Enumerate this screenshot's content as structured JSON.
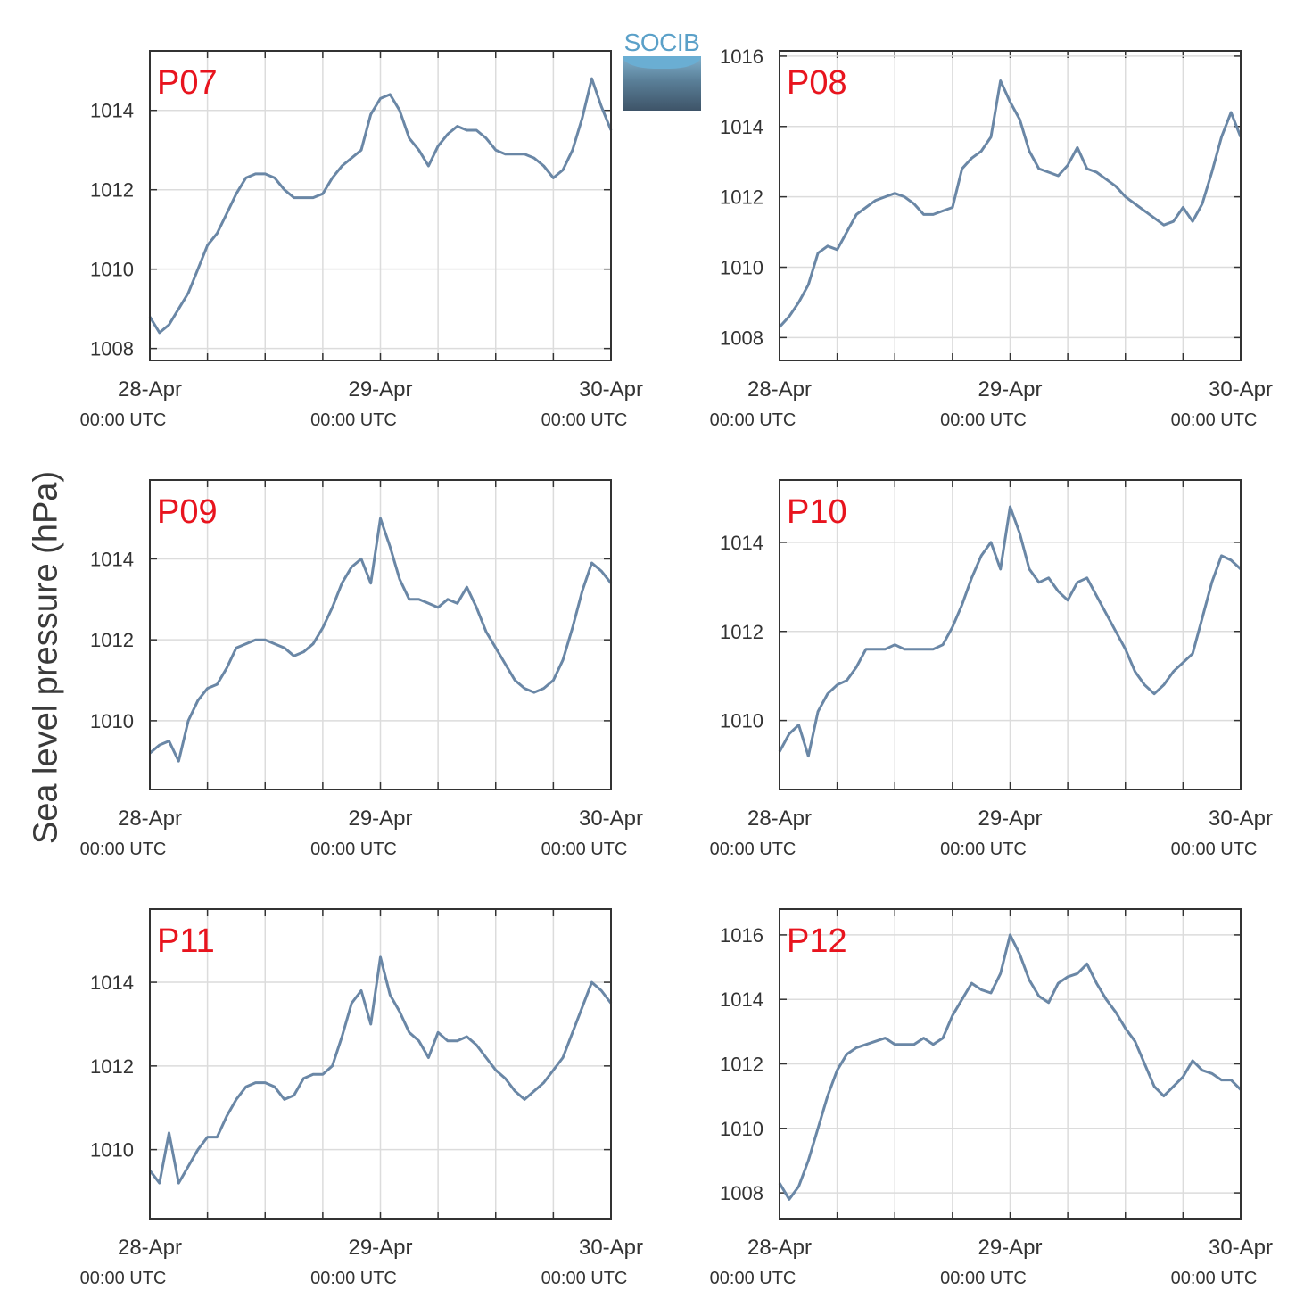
{
  "figure": {
    "ylabel": "Sea level pressure (hPa)",
    "logo_text": "SOCIB",
    "line_color": "#6a87a6",
    "panel_label_color": "#e8141e"
  },
  "chart_data": [
    {
      "type": "line",
      "panel": "P07",
      "x_unit": "hours since 28-Apr 00:00 UTC",
      "xlim": [
        0,
        48
      ],
      "ylim": [
        1007.7,
        1015.5
      ],
      "yticks": [
        1008,
        1010,
        1012,
        1014
      ],
      "xticks_major": [
        {
          "x": 0,
          "label": "28-Apr",
          "sublabel": "00:00 UTC"
        },
        {
          "x": 24,
          "label": "29-Apr",
          "sublabel": "00:00 UTC"
        },
        {
          "x": 48,
          "label": "30-Apr",
          "sublabel": "00:00 UTC"
        }
      ],
      "x": [
        0,
        1,
        2,
        3,
        4,
        5,
        6,
        7,
        8,
        9,
        10,
        11,
        12,
        13,
        14,
        15,
        16,
        17,
        18,
        19,
        20,
        21,
        22,
        23,
        24,
        25,
        26,
        27,
        28,
        29,
        30,
        31,
        32,
        33,
        34,
        35,
        36,
        37,
        38,
        39,
        40,
        41,
        42,
        43,
        44,
        45,
        46,
        47,
        48
      ],
      "y": [
        1008.8,
        1008.4,
        1008.6,
        1009.0,
        1009.4,
        1010.0,
        1010.6,
        1010.9,
        1011.4,
        1011.9,
        1012.3,
        1012.4,
        1012.4,
        1012.3,
        1012.0,
        1011.8,
        1011.8,
        1011.8,
        1011.9,
        1012.3,
        1012.6,
        1012.8,
        1013.0,
        1013.9,
        1014.3,
        1014.4,
        1014.0,
        1013.3,
        1013.0,
        1012.6,
        1013.1,
        1013.4,
        1013.6,
        1013.5,
        1013.5,
        1013.3,
        1013.0,
        1012.9,
        1012.9,
        1012.9,
        1012.8,
        1012.6,
        1012.3,
        1012.5,
        1013.0,
        1013.8,
        1014.8,
        1014.1,
        1013.5
      ]
    },
    {
      "type": "line",
      "panel": "P08",
      "x_unit": "hours since 28-Apr 00:00 UTC",
      "xlim": [
        0,
        48
      ],
      "ylim": [
        1007.35,
        1016.15
      ],
      "yticks": [
        1008,
        1010,
        1012,
        1014,
        1016
      ],
      "xticks_major": [
        {
          "x": 0,
          "label": "28-Apr",
          "sublabel": "00:00 UTC"
        },
        {
          "x": 24,
          "label": "29-Apr",
          "sublabel": "00:00 UTC"
        },
        {
          "x": 48,
          "label": "30-Apr",
          "sublabel": "00:00 UTC"
        }
      ],
      "x": [
        0,
        1,
        2,
        3,
        4,
        5,
        6,
        7,
        8,
        9,
        10,
        11,
        12,
        13,
        14,
        15,
        16,
        17,
        18,
        19,
        20,
        21,
        22,
        23,
        24,
        25,
        26,
        27,
        28,
        29,
        30,
        31,
        32,
        33,
        34,
        35,
        36,
        37,
        38,
        39,
        40,
        41,
        42,
        43,
        44,
        45,
        46,
        47,
        48
      ],
      "y": [
        1008.3,
        1008.6,
        1009.0,
        1009.5,
        1010.4,
        1010.6,
        1010.5,
        1011.0,
        1011.5,
        1011.7,
        1011.9,
        1012.0,
        1012.1,
        1012.0,
        1011.8,
        1011.5,
        1011.5,
        1011.6,
        1011.7,
        1012.8,
        1013.1,
        1013.3,
        1013.7,
        1015.3,
        1014.7,
        1014.2,
        1013.3,
        1012.8,
        1012.7,
        1012.6,
        1012.9,
        1013.4,
        1012.8,
        1012.7,
        1012.5,
        1012.3,
        1012.0,
        1011.8,
        1011.6,
        1011.4,
        1011.2,
        1011.3,
        1011.7,
        1011.3,
        1011.8,
        1012.7,
        1013.7,
        1014.4,
        1013.7
      ]
    },
    {
      "type": "line",
      "panel": "P09",
      "x_unit": "hours since 28-Apr 00:00 UTC",
      "xlim": [
        0,
        48
      ],
      "ylim": [
        1008.3,
        1015.95
      ],
      "yticks": [
        1010,
        1012,
        1014
      ],
      "xticks_major": [
        {
          "x": 0,
          "label": "28-Apr",
          "sublabel": "00:00 UTC"
        },
        {
          "x": 24,
          "label": "29-Apr",
          "sublabel": "00:00 UTC"
        },
        {
          "x": 48,
          "label": "30-Apr",
          "sublabel": "00:00 UTC"
        }
      ],
      "x": [
        0,
        1,
        2,
        3,
        4,
        5,
        6,
        7,
        8,
        9,
        10,
        11,
        12,
        13,
        14,
        15,
        16,
        17,
        18,
        19,
        20,
        21,
        22,
        23,
        24,
        25,
        26,
        27,
        28,
        29,
        30,
        31,
        32,
        33,
        34,
        35,
        36,
        37,
        38,
        39,
        40,
        41,
        42,
        43,
        44,
        45,
        46,
        47,
        48
      ],
      "y": [
        1009.2,
        1009.4,
        1009.5,
        1009.0,
        1010.0,
        1010.5,
        1010.8,
        1010.9,
        1011.3,
        1011.8,
        1011.9,
        1012.0,
        1012.0,
        1011.9,
        1011.8,
        1011.6,
        1011.7,
        1011.9,
        1012.3,
        1012.8,
        1013.4,
        1013.8,
        1014.0,
        1013.4,
        1015.0,
        1014.3,
        1013.5,
        1013.0,
        1013.0,
        1012.9,
        1012.8,
        1013.0,
        1012.9,
        1013.3,
        1012.8,
        1012.2,
        1011.8,
        1011.4,
        1011.0,
        1010.8,
        1010.7,
        1010.8,
        1011.0,
        1011.5,
        1012.3,
        1013.2,
        1013.9,
        1013.7,
        1013.4
      ]
    },
    {
      "type": "line",
      "panel": "P10",
      "x_unit": "hours since 28-Apr 00:00 UTC",
      "xlim": [
        0,
        48
      ],
      "ylim": [
        1008.45,
        1015.4
      ],
      "yticks": [
        1010,
        1012,
        1014
      ],
      "xticks_major": [
        {
          "x": 0,
          "label": "28-Apr",
          "sublabel": "00:00 UTC"
        },
        {
          "x": 24,
          "label": "29-Apr",
          "sublabel": "00:00 UTC"
        },
        {
          "x": 48,
          "label": "30-Apr",
          "sublabel": "00:00 UTC"
        }
      ],
      "x": [
        0,
        1,
        2,
        3,
        4,
        5,
        6,
        7,
        8,
        9,
        10,
        11,
        12,
        13,
        14,
        15,
        16,
        17,
        18,
        19,
        20,
        21,
        22,
        23,
        24,
        25,
        26,
        27,
        28,
        29,
        30,
        31,
        32,
        33,
        34,
        35,
        36,
        37,
        38,
        39,
        40,
        41,
        42,
        43,
        44,
        45,
        46,
        47,
        48
      ],
      "y": [
        1009.3,
        1009.7,
        1009.9,
        1009.2,
        1010.2,
        1010.6,
        1010.8,
        1010.9,
        1011.2,
        1011.6,
        1011.6,
        1011.6,
        1011.7,
        1011.6,
        1011.6,
        1011.6,
        1011.6,
        1011.7,
        1012.1,
        1012.6,
        1013.2,
        1013.7,
        1014.0,
        1013.4,
        1014.8,
        1014.2,
        1013.4,
        1013.1,
        1013.2,
        1012.9,
        1012.7,
        1013.1,
        1013.2,
        1012.8,
        1012.4,
        1012.0,
        1011.6,
        1011.1,
        1010.8,
        1010.6,
        1010.8,
        1011.1,
        1011.3,
        1011.5,
        1012.3,
        1013.1,
        1013.7,
        1013.6,
        1013.4
      ]
    },
    {
      "type": "line",
      "panel": "P11",
      "x_unit": "hours since 28-Apr 00:00 UTC",
      "xlim": [
        0,
        48
      ],
      "ylim": [
        1008.35,
        1015.75
      ],
      "yticks": [
        1010,
        1012,
        1014
      ],
      "xticks_major": [
        {
          "x": 0,
          "label": "28-Apr",
          "sublabel": "00:00 UTC"
        },
        {
          "x": 24,
          "label": "29-Apr",
          "sublabel": "00:00 UTC"
        },
        {
          "x": 48,
          "label": "30-Apr",
          "sublabel": "00:00 UTC"
        }
      ],
      "x": [
        0,
        1,
        2,
        3,
        4,
        5,
        6,
        7,
        8,
        9,
        10,
        11,
        12,
        13,
        14,
        15,
        16,
        17,
        18,
        19,
        20,
        21,
        22,
        23,
        24,
        25,
        26,
        27,
        28,
        29,
        30,
        31,
        32,
        33,
        34,
        35,
        36,
        37,
        38,
        39,
        40,
        41,
        42,
        43,
        44,
        45,
        46,
        47,
        48
      ],
      "y": [
        1009.5,
        1009.2,
        1010.4,
        1009.2,
        1009.6,
        1010.0,
        1010.3,
        1010.3,
        1010.8,
        1011.2,
        1011.5,
        1011.6,
        1011.6,
        1011.5,
        1011.2,
        1011.3,
        1011.7,
        1011.8,
        1011.8,
        1012.0,
        1012.7,
        1013.5,
        1013.8,
        1013.0,
        1014.6,
        1013.7,
        1013.3,
        1012.8,
        1012.6,
        1012.2,
        1012.8,
        1012.6,
        1012.6,
        1012.7,
        1012.5,
        1012.2,
        1011.9,
        1011.7,
        1011.4,
        1011.2,
        1011.4,
        1011.6,
        1011.9,
        1012.2,
        1012.8,
        1013.4,
        1014.0,
        1013.8,
        1013.5
      ]
    },
    {
      "type": "line",
      "panel": "P12",
      "x_unit": "hours since 28-Apr 00:00 UTC",
      "xlim": [
        0,
        48
      ],
      "ylim": [
        1007.2,
        1016.8
      ],
      "yticks": [
        1008,
        1010,
        1012,
        1014,
        1016
      ],
      "xticks_major": [
        {
          "x": 0,
          "label": "28-Apr",
          "sublabel": "00:00 UTC"
        },
        {
          "x": 24,
          "label": "29-Apr",
          "sublabel": "00:00 UTC"
        },
        {
          "x": 48,
          "label": "30-Apr",
          "sublabel": "00:00 UTC"
        }
      ],
      "x": [
        0,
        1,
        2,
        3,
        4,
        5,
        6,
        7,
        8,
        9,
        10,
        11,
        12,
        13,
        14,
        15,
        16,
        17,
        18,
        19,
        20,
        21,
        22,
        23,
        24,
        25,
        26,
        27,
        28,
        29,
        30,
        31,
        32,
        33,
        34,
        35,
        36,
        37,
        38,
        39,
        40,
        41,
        42,
        43,
        44,
        45,
        46,
        47,
        48
      ],
      "y": [
        1008.3,
        1007.8,
        1008.2,
        1009.0,
        1010.0,
        1011.0,
        1011.8,
        1012.3,
        1012.5,
        1012.6,
        1012.7,
        1012.8,
        1012.6,
        1012.6,
        1012.6,
        1012.8,
        1012.6,
        1012.8,
        1013.5,
        1014.0,
        1014.5,
        1014.3,
        1014.2,
        1014.8,
        1016.0,
        1015.4,
        1014.6,
        1014.1,
        1013.9,
        1014.5,
        1014.7,
        1014.8,
        1015.1,
        1014.5,
        1014.0,
        1013.6,
        1013.1,
        1012.7,
        1012.0,
        1011.3,
        1011.0,
        1011.3,
        1011.6,
        1012.1,
        1011.8,
        1011.7,
        1011.5,
        1011.5,
        1011.2
      ]
    }
  ]
}
